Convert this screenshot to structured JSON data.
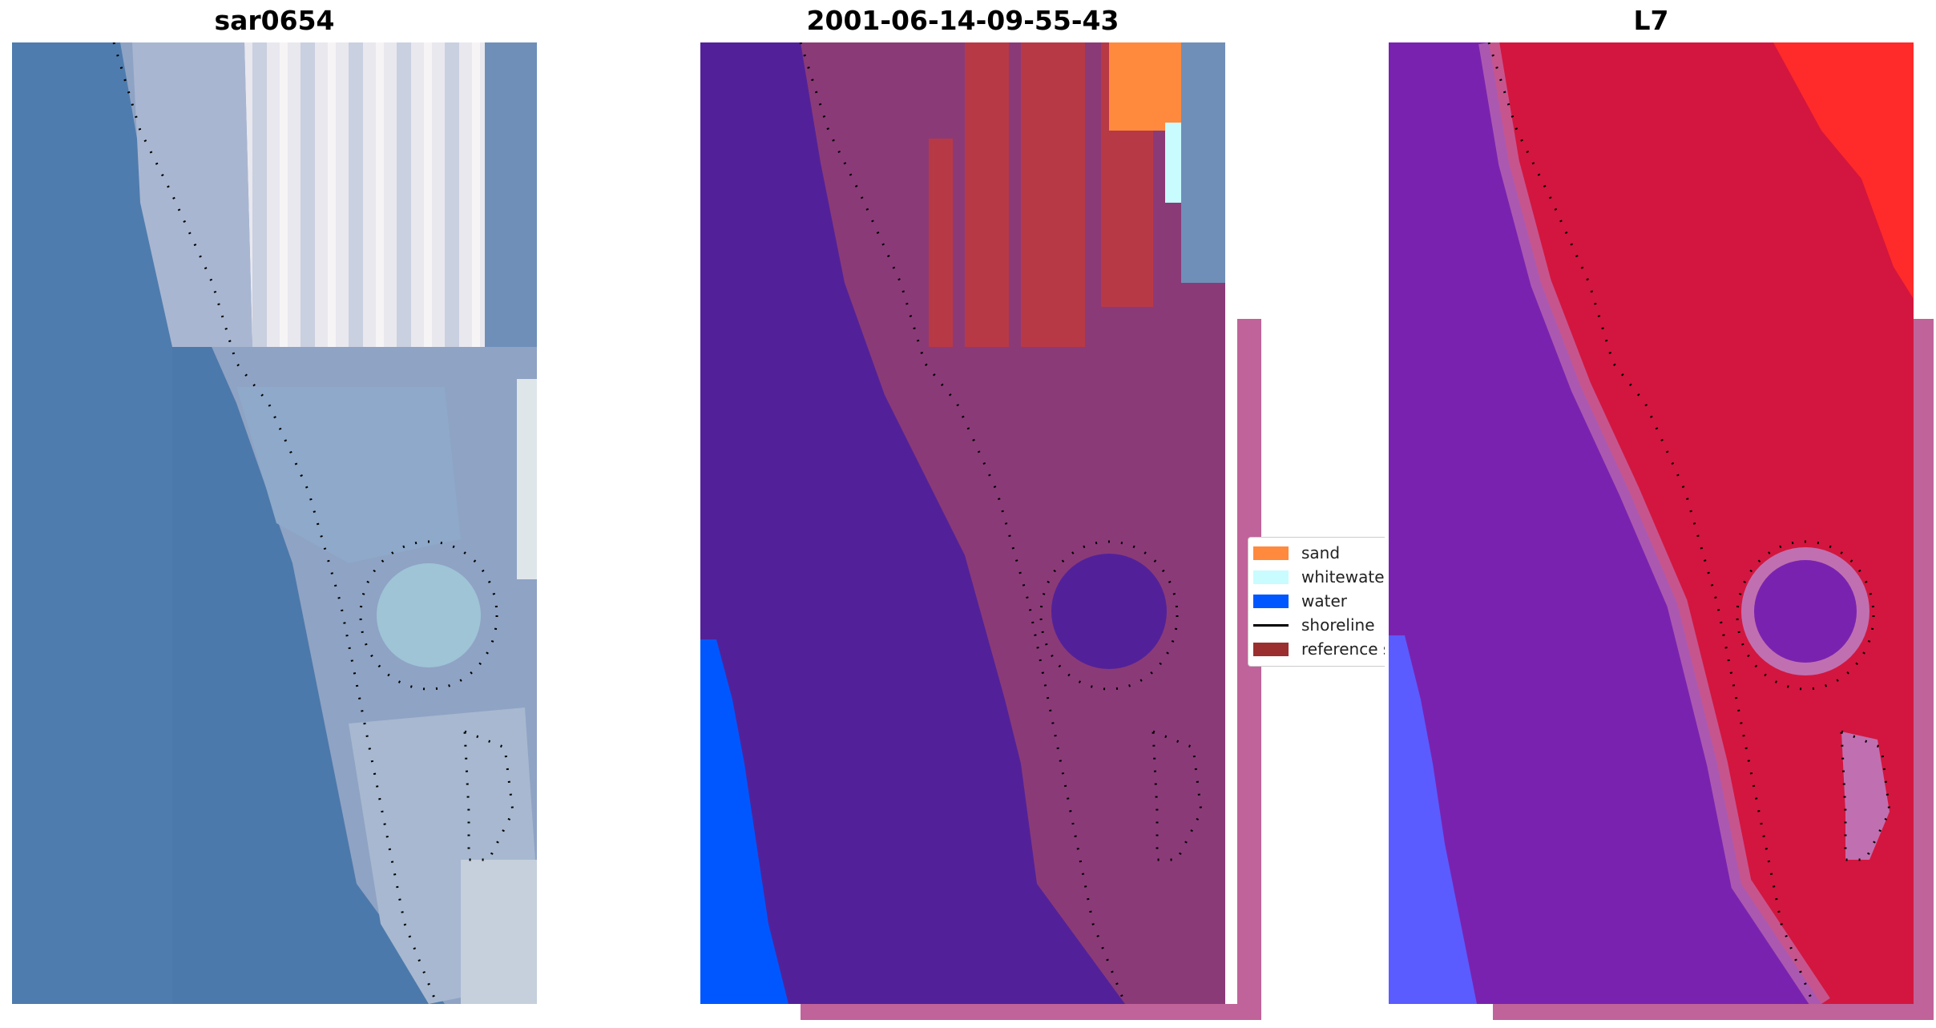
{
  "figure": {
    "panels": [
      {
        "title": "sar0654"
      },
      {
        "title": "2001-06-14-09-55-43"
      },
      {
        "title": "L7"
      }
    ],
    "legend": {
      "items": [
        {
          "label": "sand",
          "color": "#ff8a3d",
          "kind": "patch"
        },
        {
          "label": "whitewater",
          "color": "#c8fcff",
          "kind": "patch"
        },
        {
          "label": "water",
          "color": "#0057ff",
          "kind": "patch"
        },
        {
          "label": "shoreline",
          "color": "#000000",
          "kind": "line"
        },
        {
          "label": "reference shoreline",
          "color": "#9b2f2f",
          "kind": "patch"
        }
      ]
    }
  },
  "colors": {
    "rgb_water": "#4c79ab",
    "rgb_urban": "#e8e6ee",
    "class_water_tint": "#52219a",
    "class_sand_tint": "#8b3a78",
    "class_sand": "#ff8a3d",
    "class_whitewater": "#c8fcff",
    "class_water": "#0057ff",
    "class_ref": "#b83946",
    "class_overlay": "#c0639a",
    "mndwi_water": "#7a22b0",
    "mndwi_land": "#d3163f",
    "mndwi_edge": "#ff2a2a",
    "mndwi_blue": "#5a5cff"
  }
}
